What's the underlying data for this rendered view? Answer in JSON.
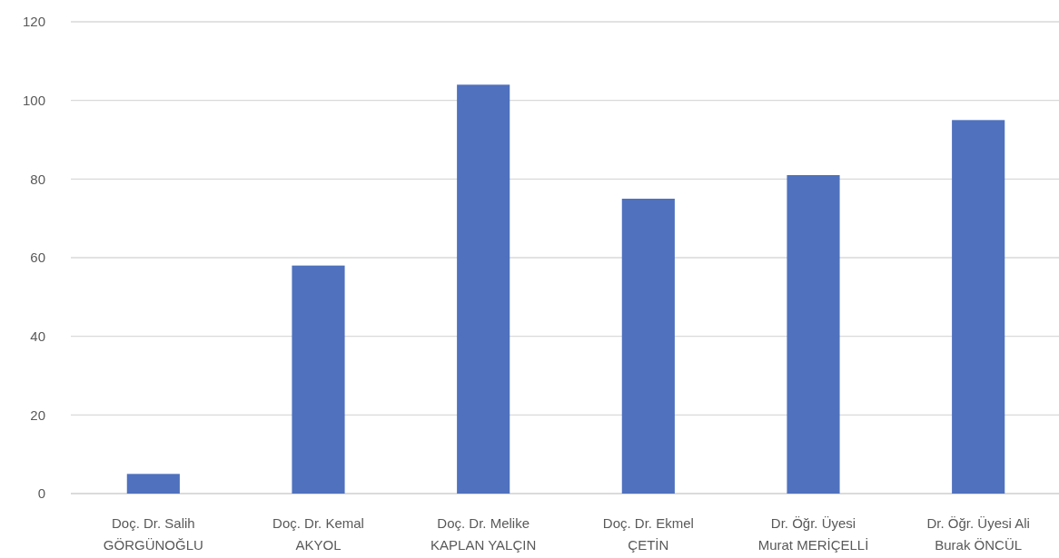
{
  "chart_data": {
    "type": "bar",
    "categories": [
      "Doç. Dr. Salih\nGÖRGÜNOĞLU",
      "Doç. Dr. Kemal\nAKYOL",
      "Doç. Dr. Melike\nKAPLAN YALÇIN",
      "Doç. Dr. Ekmel\nÇETİN",
      "Dr. Öğr. Üyesi\nMurat MERİÇELLİ",
      "Dr. Öğr. Üyesi Ali\nBurak ÖNCÜL"
    ],
    "values": [
      5,
      58,
      104,
      75,
      81,
      95
    ],
    "color": "#4f71be",
    "ylim": [
      0,
      120
    ],
    "yticks": [
      0,
      20,
      40,
      60,
      80,
      100,
      120
    ],
    "grid": "y"
  }
}
